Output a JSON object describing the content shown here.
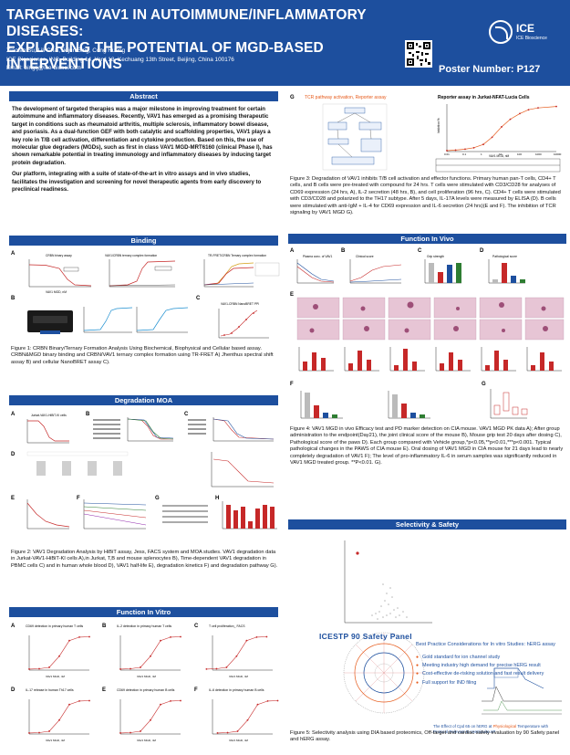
{
  "header": {
    "title_line1": "TARGETING VAV1 IN AUTOIMMUNE/INFLAMMATORY DISEASES:",
    "title_line2": "EXPLORING THE POTENTIAL OF MGD-BASED INTERVENTIONS",
    "authors": "Xiaolan Su, Lili Chai,Tiejun Bing, Cong Huang",
    "affiliation": "ICE Bioscience, INC. Building 14, Yard 18, Kechuang 13th Street, Beijing, China 100176",
    "email": "Email: bingtj@ice-biosci.com",
    "poster_number": "Poster Number: P127",
    "logo_text": "ICE",
    "logo_sub": "ICE Bioscience"
  },
  "sections": {
    "abstract": "Abstract",
    "binding": "Binding",
    "degradation": "Degradation MOA",
    "function_vitro": "Function In Vitro",
    "function_vivo": "Function In Vivo",
    "selectivity": "Selectivity & Safety"
  },
  "abstract": {
    "p1": "The development of targeted therapies was a major milestone in improving treatment for certain autoimmune and inflammatory diseases. Recently, VAV1 has emerged as a promising therapeutic target in conditions such as rheumatoid arthritis, multiple sclerosis, inflammatory bowel disease, and psoriasis. As a dual-function GEF with both catalytic and scaffolding properties, VAV1 plays a key role in T/B cell activation, differentiation and cytokine production. Based on this, the use of molecular glue degraders (MGDs), such as first in class VAV1 MGD-MRT6160 (clinical Phase I), has shown remarkable potential in treating immunology and inflammatory diseases by inducing target protein degradation.",
    "p2": "Our platform, integrating with a suite of state-of-the-art in vitro assays and in vivo studies, facilitates the investigation and screening for novel therapeutic agents from early discovery to preclinical readiness."
  },
  "captions": {
    "fig1": "Figure 1: CRBN Binary/Ternary Formation Analysis Using Biochemical, Biophysical and Cellular based assay. CRBN&MGD binary binding and CRBN/VAV1 ternary complex formation using TR-FRET A) Jhenthus spectral shift assay B) and cellular NanoBRET assay C).",
    "fig2": "Figure 2: VAV1 Degradation Analysis by HiBiT assay, Jess, FACS system and MOA studies. VAV1 degradation data in Jurkat-VAV1-HiBiT-KI cells A),in Jurkat, T,B and mouse splenocytes B), Time-dependent VAV1 degradation in PBMC cells C) and in human whole blood D), VAV1 half-life E), degradation kinetics F) and degradation pathway G).",
    "fig3": "Figure 3: Degradation of VAV1 inhibits T/B cell activation and effector functions. Primary human pan-T cells, CD4+ T cells, and B cells were pre-treated with compound for 24 hrs. T cells were stimulated with CD3/CD28 for analyses of CD69 expression (24 hrs, A), IL-2 secretion (48 hrs, B), and cell proliferation (96 hrs, C). CD4+ T cells were stimulated with CD3/CD28 and polarized to the TH17 subtype. After 5 days, IL-17A levels were measured by ELISA (D). B cells were stimulated with anti-IgM + IL-4 for CD69 expression and IL-6 secretion (24 hrs)(E and F). The inhibition of TCR signaling by VAV1 MGD G).",
    "fig4": "Figure 4: VAV1 MGD in vivo Efficacy test and PD marker detection on CIA mouse. VAV1 MGD PK data A); After group administration to the endpoint(Day21), the joint clinical score of the mouse B), Mouse grip test 20 days after dosing C), Pathological score of the paws D). Each group compared with Vehicle group,*p<0.05,**p<0.01,***p<0.001. Typical pathological changes in the PAWS of CIA mouse E). Oral dosing of VAV1 MGD in CIA mouse for 21 days lead to nearly completely degradation of VAV1 F); The level of pro-inflammatory IL-6 in serum samples was significantly reduced in VAV1 MGD treated group. **P<0.01. G).",
    "fig5": "Figure 5: Selectivity analysis using DIA based proteomics, Off-target and cardiac safety evaluation by 90 Safety panel and hERG assay."
  },
  "fig_labels": {
    "crbn_binary": "CRBN binary assay",
    "vav1_ternary": "VAV1/CRBN ternary complex formation",
    "tr_fret": "TR-FRET/CRBN Ternary complex formation",
    "nanobret": "VAV1-CRBN NanoBRET PPI",
    "hibit": "Jurkat-VAV1-HiBiT-KI cells",
    "cd69_t": "CD69 detection in primary human T cells",
    "il2_t": "IL-2 detection in primary human T cells",
    "tprolif": "T cell proliferation_ FACS",
    "il17a": "IL-17 release in human Th17 cells",
    "cd69_b": "CD69 detection in primary human B cells",
    "il6_b": "IL-6 detection in primary human B cells",
    "x_vav1": "VAV1 MGD, nM",
    "reporter": "Reporter assay in Jurkat-NFAT-Lucia Cells",
    "tcr": "TCR pathway activation, Reporter assay",
    "pk": "Plasma conc. of VAV1",
    "clinical": "Clinical score",
    "grip": "Grip strength",
    "patho": "Pathological score",
    "icestp": "ICESTP 90 Safety Panel",
    "herg_title": "Best Practice Considerations for In vitro Studies: hERG assay",
    "herg_note1": "The Effect of Cpd 65 on hERG at ",
    "herg_note2": "Physiological",
    "herg_note3": " Temperature with Protocol Relevant to Ventricular AP"
  },
  "safety_list": [
    "Gold standard for ion channel study",
    "Meeting industry high demand for precise hERG result",
    "Cost-effective de-risking solution and fast result delivery",
    "Full support for IND filing"
  ],
  "chart_data": [
    {
      "type": "line",
      "title": "Reporter assay in Jurkat-NFAT-Lucia Cells",
      "x": [
        0.01,
        0.03,
        0.1,
        0.3,
        1,
        3,
        10,
        30,
        100,
        300,
        1000,
        10000
      ],
      "series": [
        {
          "values": [
            2,
            3,
            5,
            8,
            15,
            30,
            52,
            68,
            80,
            88,
            92,
            95
          ]
        }
      ],
      "xlabel": "VAV1 MGD, nM",
      "ylabel": "Inhibition %",
      "ylim": [
        0,
        100
      ],
      "x_ticks": [
        "0.01",
        "0.1",
        "1",
        "10",
        "100",
        "1000",
        "10000"
      ]
    },
    {
      "type": "line",
      "title": "CD69 detection in primary human T cells",
      "x": [
        0.01,
        0.1,
        1,
        10,
        100,
        1000,
        10000
      ],
      "series": [
        {
          "values": [
            3,
            4,
            8,
            40,
            85,
            95,
            96
          ]
        }
      ],
      "ylim": [
        0,
        100
      ]
    }
  ]
}
